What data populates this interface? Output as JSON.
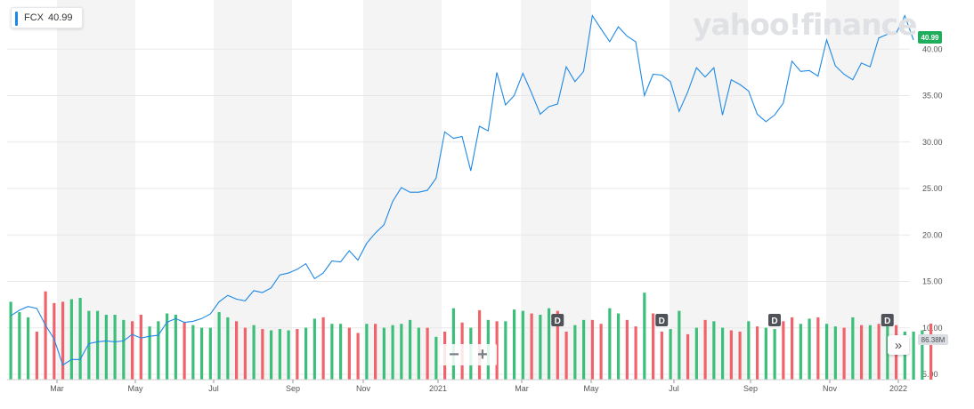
{
  "legend": {
    "symbol": "FCX",
    "value": "40.99"
  },
  "watermark": "yahoo!finance",
  "last_price_tag": "40.99",
  "volume_tag": "86.38M",
  "zoom": {
    "out_label": "−",
    "in_label": "+"
  },
  "expand_icon": "double-chevron-right-icon",
  "dividend_marker_label": "D",
  "colors": {
    "line": "#1e88e5",
    "volume_up": "#3cbf7a",
    "volume_down": "#f0636b",
    "band": "#f4f4f4",
    "price_tag": "#1fae5b",
    "dividend_marker": "#4f5359"
  },
  "chart_data": {
    "type": "line",
    "x_axis_labels": [
      "Mar",
      "May",
      "Jul",
      "Sep",
      "Nov",
      "2021",
      "Mar",
      "May",
      "Jul",
      "Sep",
      "Nov",
      "2022"
    ],
    "y_ticks": [
      "5.00",
      "10.00",
      "15.00",
      "20.00",
      "25.00",
      "30.00",
      "35.00",
      "40.00"
    ],
    "ylim": [
      5,
      44
    ],
    "grid": true,
    "legend_position": "top-left",
    "series": [
      {
        "values": [
          11.3,
          11.9,
          12.3,
          12.1,
          10.3,
          8.8,
          6.0,
          6.6,
          6.6,
          8.3,
          8.5,
          8.6,
          8.5,
          8.6,
          9.3,
          8.9,
          9.1,
          9.2,
          10.6,
          11.0,
          10.6,
          10.7,
          11.0,
          11.5,
          12.8,
          13.5,
          13.1,
          12.9,
          14.0,
          13.8,
          14.3,
          15.7,
          15.9,
          16.3,
          16.9,
          15.3,
          15.9,
          17.2,
          17.1,
          18.3,
          17.3,
          19.1,
          20.2,
          21.1,
          23.6,
          25.1,
          24.6,
          24.6,
          24.8,
          26.1,
          31.1,
          30.4,
          30.6,
          26.9,
          31.7,
          31.2,
          37.5,
          34.0,
          35.0,
          37.4,
          35.3,
          33.0,
          33.8,
          34.1,
          38.1,
          36.5,
          37.6,
          43.6,
          42.2,
          40.8,
          42.4,
          41.4,
          40.8,
          35.0,
          37.3,
          37.2,
          36.5,
          33.3,
          35.4,
          38.0,
          37.0,
          38.0,
          32.9,
          36.7,
          36.2,
          35.5,
          33.0,
          32.2,
          32.9,
          34.2,
          38.7,
          37.6,
          37.7,
          37.1,
          41.0,
          38.2,
          37.3,
          36.7,
          38.5,
          38.1,
          41.2,
          41.6,
          41.7,
          43.6,
          40.99
        ]
      }
    ],
    "volume": {
      "unit": "M",
      "values": [
        120,
        104,
        96,
        74,
        136,
        118,
        120,
        124,
        126,
        106,
        106,
        100,
        100,
        92,
        90,
        100,
        82,
        90,
        102,
        100,
        88,
        84,
        80,
        80,
        104,
        96,
        90,
        80,
        84,
        78,
        76,
        78,
        76,
        78,
        80,
        94,
        96,
        86,
        86,
        80,
        72,
        86,
        86,
        80,
        84,
        86,
        92,
        80,
        80,
        66,
        74,
        110,
        88,
        80,
        107,
        92,
        90,
        90,
        108,
        106,
        102,
        100,
        110,
        106,
        74,
        84,
        92,
        92,
        86,
        110,
        102,
        92,
        82,
        134,
        102,
        74,
        78,
        106,
        70,
        80,
        92,
        90,
        80,
        76,
        74,
        90,
        82,
        80,
        78,
        90,
        96,
        86,
        94,
        96,
        86,
        82,
        80,
        96,
        84,
        84,
        86,
        82,
        84,
        74,
        74,
        76,
        86.38
      ],
      "up": [
        true,
        true,
        true,
        false,
        false,
        false,
        false,
        true,
        true,
        true,
        true,
        true,
        true,
        true,
        false,
        false,
        true,
        true,
        true,
        true,
        false,
        true,
        true,
        true,
        true,
        true,
        false,
        false,
        true,
        false,
        true,
        true,
        true,
        false,
        true,
        true,
        false,
        true,
        true,
        false,
        false,
        true,
        false,
        true,
        true,
        true,
        true,
        true,
        false,
        true,
        false,
        true,
        false,
        true,
        false,
        true,
        false,
        true,
        true,
        true,
        false,
        true,
        true,
        false,
        false,
        true,
        true,
        false,
        false,
        true,
        true,
        false,
        false,
        true,
        false,
        false,
        true,
        true,
        false,
        true,
        false,
        true,
        true,
        false,
        false,
        true,
        false,
        true,
        true,
        false,
        false,
        true,
        true,
        false,
        true,
        true,
        false,
        true,
        false,
        true,
        false,
        true,
        false,
        true,
        true,
        true,
        false
      ]
    },
    "dividend_markers": [
      {
        "x_index": 63,
        "label": "D"
      },
      {
        "x_index": 75,
        "label": "D"
      },
      {
        "x_index": 88,
        "label": "D"
      },
      {
        "x_index": 101,
        "label": "D"
      }
    ]
  }
}
